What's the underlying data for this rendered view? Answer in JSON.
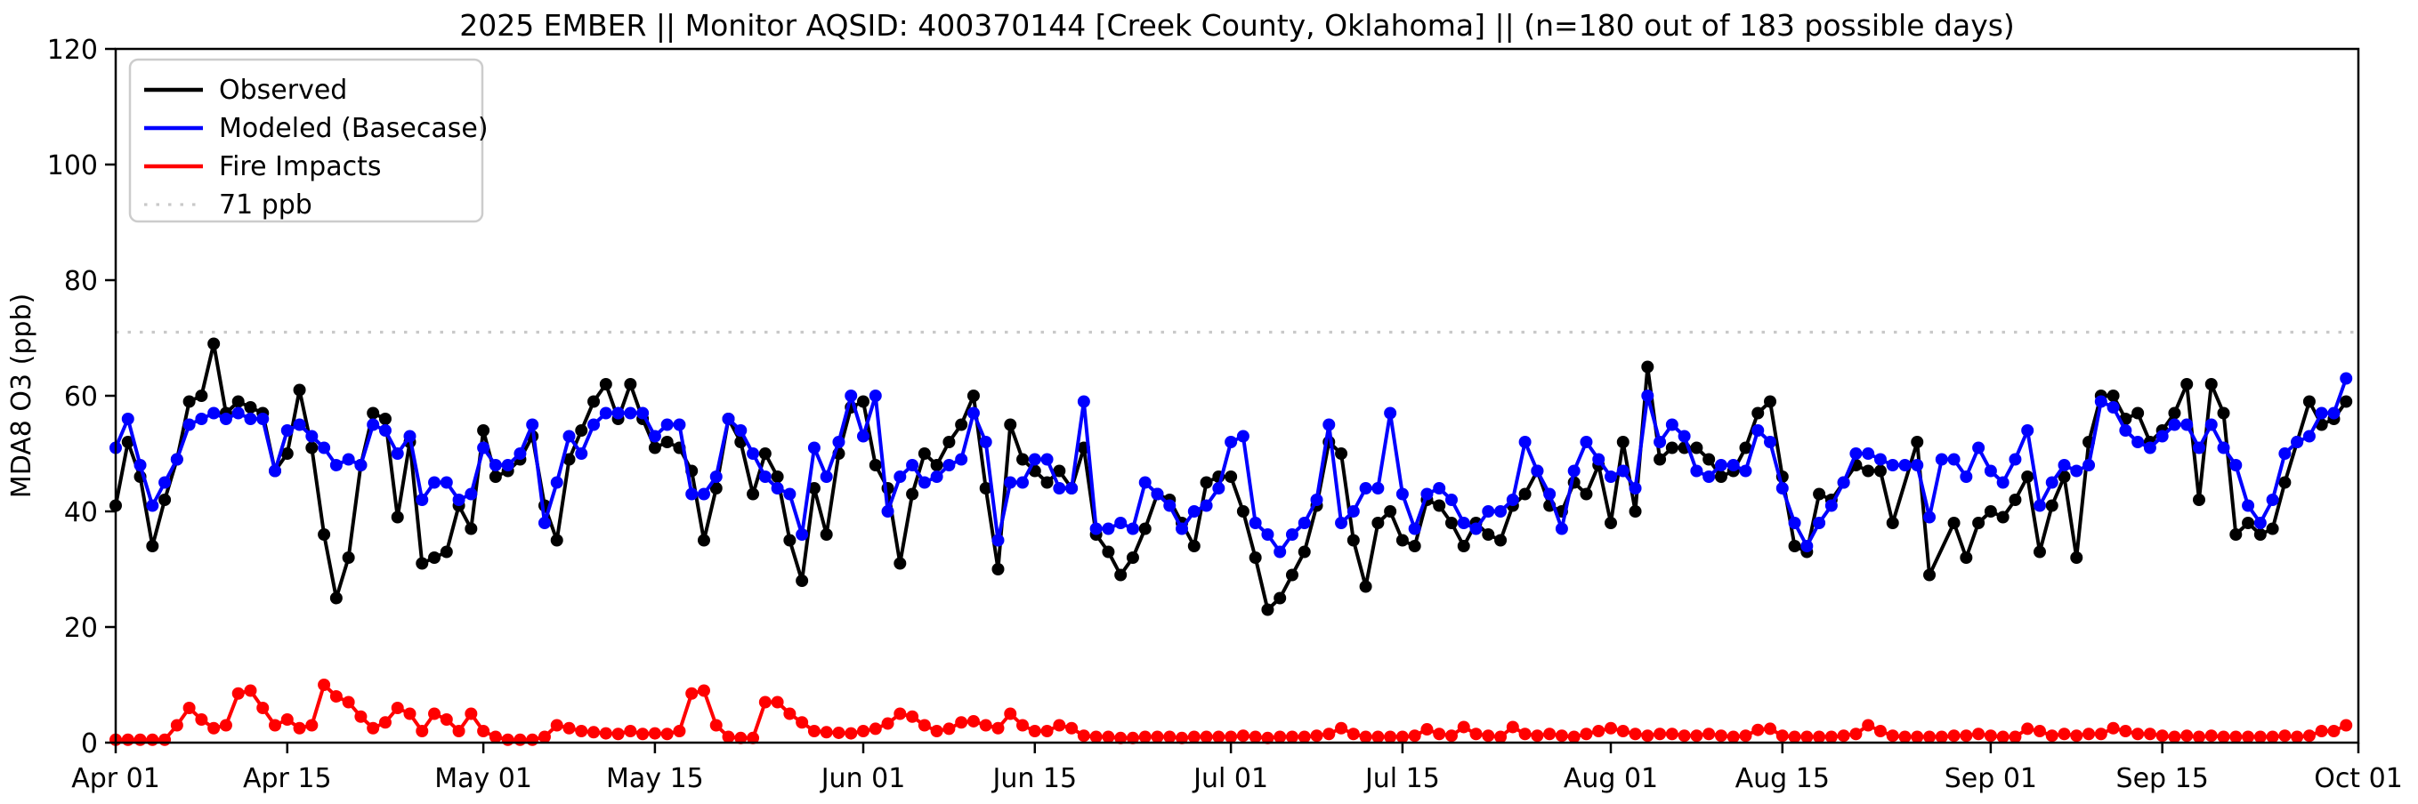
{
  "title": "2025 EMBER || Monitor AQSID: 400370144 [Creek County, Oklahoma] || (n=180 out of 183 possible days)",
  "legend": {
    "items": [
      {
        "label": "Observed",
        "color": "#000000",
        "style": "solid"
      },
      {
        "label": "Modeled (Basecase)",
        "color": "#0000ff",
        "style": "solid"
      },
      {
        "label": "Fire Impacts",
        "color": "#ff0000",
        "style": "solid"
      },
      {
        "label": "71 ppb",
        "color": "#c9c9c9",
        "style": "dotted"
      }
    ]
  },
  "chart_data": {
    "type": "line",
    "title": "2025 EMBER || Monitor AQSID: 400370144 [Creek County, Oklahoma] || (n=180 out of 183 possible days)",
    "xlabel": "",
    "ylabel": "MDA8 O3 (ppb)",
    "ylim": [
      0,
      120
    ],
    "yticks": [
      0,
      20,
      40,
      60,
      80,
      100,
      120
    ],
    "grid": false,
    "legend_position": "upper left",
    "n_days_total": 183,
    "n_days_observed": 180,
    "threshold": {
      "value": 71,
      "label": "71 ppb",
      "color": "#c9c9c9"
    },
    "x_days_span": 183,
    "xticks": [
      {
        "day": 0,
        "label": "Apr 01"
      },
      {
        "day": 14,
        "label": "Apr 15"
      },
      {
        "day": 30,
        "label": "May 01"
      },
      {
        "day": 44,
        "label": "May 15"
      },
      {
        "day": 61,
        "label": "Jun 01"
      },
      {
        "day": 75,
        "label": "Jun 15"
      },
      {
        "day": 91,
        "label": "Jul 01"
      },
      {
        "day": 105,
        "label": "Jul 15"
      },
      {
        "day": 122,
        "label": "Aug 01"
      },
      {
        "day": 136,
        "label": "Aug 15"
      },
      {
        "day": 153,
        "label": "Sep 01"
      },
      {
        "day": 167,
        "label": "Sep 15"
      },
      {
        "day": 183,
        "label": "Oct 01"
      }
    ],
    "series": [
      {
        "name": "Observed",
        "color": "#000000",
        "marker": "circle",
        "values": [
          41,
          52,
          46,
          34,
          42,
          49,
          59,
          60,
          69,
          57,
          59,
          58,
          57,
          47,
          50,
          61,
          51,
          36,
          25,
          32,
          48,
          57,
          56,
          39,
          52,
          31,
          32,
          33,
          41,
          37,
          54,
          46,
          47,
          49,
          53,
          41,
          35,
          49,
          54,
          59,
          62,
          56,
          62,
          56,
          51,
          52,
          51,
          47,
          35,
          44,
          56,
          52,
          43,
          50,
          46,
          35,
          28,
          44,
          36,
          50,
          58,
          59,
          48,
          44,
          31,
          43,
          50,
          48,
          52,
          55,
          60,
          44,
          30,
          55,
          49,
          47,
          45,
          47,
          44,
          51,
          36,
          33,
          29,
          32,
          37,
          43,
          42,
          38,
          34,
          45,
          46,
          46,
          40,
          32,
          23,
          25,
          29,
          33,
          41,
          52,
          50,
          35,
          27,
          38,
          40,
          35,
          34,
          42,
          41,
          38,
          34,
          38,
          36,
          35,
          41,
          43,
          47,
          41,
          40,
          45,
          43,
          48,
          38,
          52,
          40,
          65,
          49,
          51,
          51,
          51,
          49,
          46,
          47,
          51,
          57,
          59,
          46,
          34,
          33,
          43,
          42,
          45,
          48,
          47,
          47,
          38,
          null,
          52,
          29,
          null,
          38,
          32,
          38,
          40,
          39,
          42,
          46,
          33,
          41,
          46,
          32,
          52,
          60,
          60,
          56,
          57,
          52,
          54,
          57,
          62,
          42,
          62,
          57,
          36,
          38,
          36,
          37,
          45,
          52,
          59,
          55,
          56,
          59
        ]
      },
      {
        "name": "Modeled (Basecase)",
        "color": "#0000ff",
        "marker": "circle",
        "values": [
          51,
          56,
          48,
          41,
          45,
          49,
          55,
          56,
          57,
          56,
          57,
          56,
          56,
          47,
          54,
          55,
          53,
          51,
          48,
          49,
          48,
          55,
          54,
          50,
          53,
          42,
          45,
          45,
          42,
          43,
          51,
          48,
          48,
          50,
          55,
          38,
          45,
          53,
          50,
          55,
          57,
          57,
          57,
          57,
          53,
          55,
          55,
          43,
          43,
          46,
          56,
          54,
          50,
          46,
          44,
          43,
          36,
          51,
          46,
          52,
          60,
          53,
          60,
          40,
          46,
          48,
          45,
          46,
          48,
          49,
          57,
          52,
          35,
          45,
          45,
          49,
          49,
          44,
          44,
          59,
          37,
          37,
          38,
          37,
          45,
          43,
          41,
          37,
          40,
          41,
          44,
          52,
          53,
          38,
          36,
          33,
          36,
          38,
          42,
          55,
          38,
          40,
          44,
          44,
          57,
          43,
          37,
          43,
          44,
          42,
          38,
          37,
          40,
          40,
          42,
          52,
          47,
          43,
          37,
          47,
          52,
          49,
          46,
          47,
          44,
          60,
          52,
          55,
          53,
          47,
          46,
          48,
          48,
          47,
          54,
          52,
          44,
          38,
          34,
          38,
          41,
          45,
          50,
          50,
          49,
          48,
          48,
          48,
          39,
          49,
          49,
          46,
          51,
          47,
          45,
          49,
          54,
          41,
          45,
          48,
          47,
          48,
          59,
          58,
          54,
          52,
          51,
          53,
          55,
          55,
          51,
          55,
          51,
          48,
          41,
          38,
          42,
          50,
          52,
          53,
          57,
          57,
          63
        ]
      },
      {
        "name": "Fire Impacts",
        "color": "#ff0000",
        "marker": "circle",
        "values": [
          0.5,
          0.5,
          0.5,
          0.5,
          0.5,
          3,
          6,
          4,
          2.5,
          3,
          8.5,
          9,
          6,
          3,
          4,
          2.5,
          3,
          10,
          8,
          7,
          4.5,
          2.5,
          3.5,
          6,
          5,
          2,
          5,
          4,
          2,
          5,
          2,
          1,
          0.5,
          0.5,
          0.5,
          1,
          3,
          2.5,
          2,
          1.8,
          1.6,
          1.5,
          2,
          1.5,
          1.6,
          1.5,
          2,
          8.5,
          9,
          3,
          1,
          0.8,
          0.8,
          7,
          7,
          5,
          3.5,
          2,
          1.8,
          1.7,
          1.6,
          2,
          2.4,
          3.3,
          5,
          4.5,
          3,
          2,
          2.4,
          3.5,
          3.7,
          3,
          2.5,
          5,
          3,
          2,
          2,
          3,
          2.5,
          1.2,
          1,
          1,
          0.8,
          0.8,
          1,
          1,
          1,
          0.8,
          1,
          1,
          1,
          1,
          1.2,
          1,
          0.8,
          1,
          1,
          1,
          1.2,
          1.5,
          2.5,
          1.5,
          1,
          1,
          1,
          1,
          1.2,
          2.3,
          1.5,
          1.2,
          2.7,
          1.5,
          1.2,
          1,
          2.7,
          1.5,
          1.2,
          1.5,
          1.2,
          1,
          1.5,
          2,
          2.5,
          2,
          1.5,
          1.2,
          1.5,
          1.5,
          1.2,
          1.2,
          1.5,
          1.2,
          1,
          1.2,
          2.2,
          2.4,
          1.2,
          1,
          1,
          1,
          1,
          1.2,
          1.5,
          3,
          2,
          1.2,
          1,
          1,
          1,
          1,
          1.2,
          1.2,
          1.5,
          1.2,
          1,
          1,
          2.4,
          2,
          1.2,
          1.5,
          1.2,
          1.5,
          1.5,
          2.5,
          2,
          1.5,
          1.5,
          1.2,
          1,
          1.2,
          1,
          1.2,
          1,
          1,
          1,
          1,
          1,
          1.2,
          1,
          1.2,
          2,
          2,
          3
        ]
      }
    ]
  },
  "axes": {
    "y_tick_labels": [
      "0",
      "20",
      "40",
      "60",
      "80",
      "100",
      "120"
    ],
    "ylabel": "MDA8 O3 (ppb)"
  }
}
